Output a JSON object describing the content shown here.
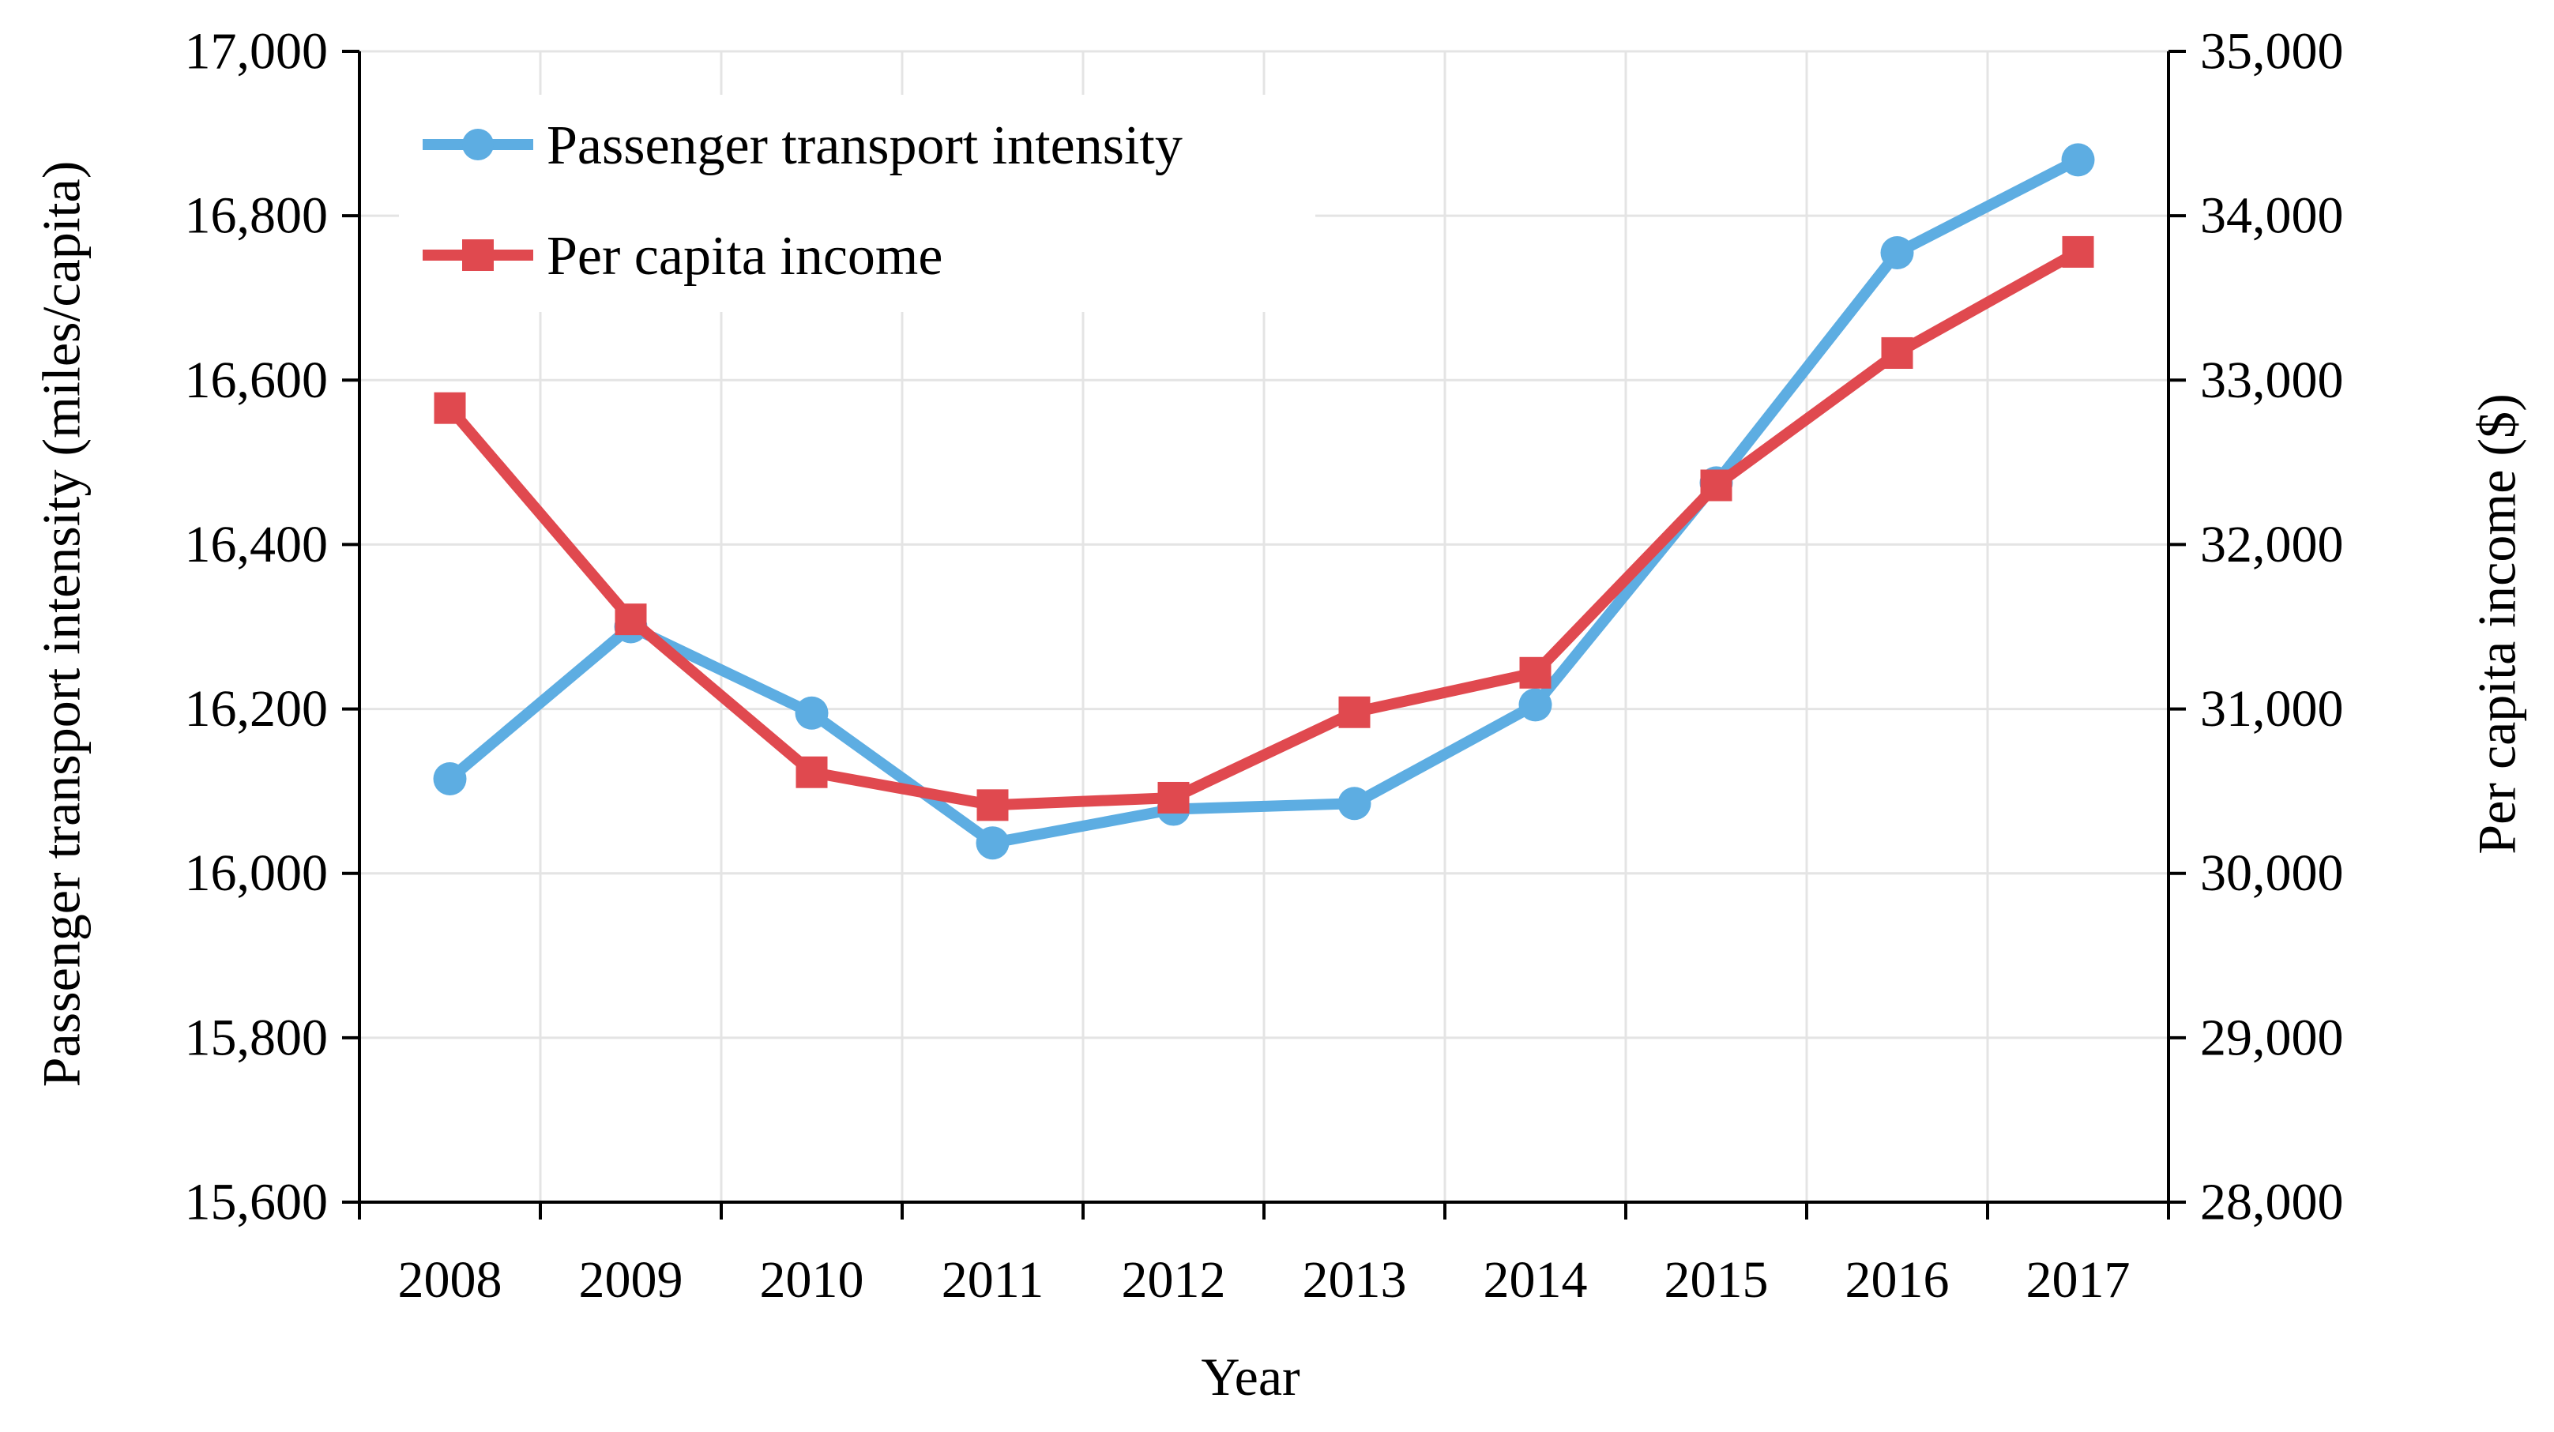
{
  "chart_data": {
    "type": "line",
    "title": "",
    "xlabel": "Year",
    "ylabel_left": "Passenger transport intensity (miles/capita)",
    "ylabel_right": "Per capita income ($)",
    "categories": [
      "2008",
      "2009",
      "2010",
      "2011",
      "2012",
      "2013",
      "2014",
      "2015",
      "2016",
      "2017"
    ],
    "y_left": {
      "min": 15600,
      "max": 17000,
      "step": 200,
      "tick_labels": [
        "15,600",
        "15,800",
        "16,000",
        "16,200",
        "16,400",
        "16,600",
        "16,800",
        "17,000"
      ]
    },
    "y_right": {
      "min": 28000,
      "max": 35000,
      "step": 1000,
      "tick_labels": [
        "28,000",
        "29,000",
        "30,000",
        "31,000",
        "32,000",
        "33,000",
        "34,000",
        "35,000"
      ]
    },
    "grid": true,
    "legend_position": "top-left",
    "series": [
      {
        "name": "Passenger transport intensity",
        "axis": "left",
        "color": "#5DADE2",
        "marker": "circle",
        "values": [
          16115,
          16300,
          16195,
          16037,
          16078,
          16085,
          16205,
          16475,
          16755,
          16868
        ]
      },
      {
        "name": "Per capita income",
        "axis": "right",
        "color": "#E0494F",
        "marker": "square",
        "values": [
          32830,
          31545,
          30615,
          30415,
          30460,
          30980,
          31220,
          32360,
          33165,
          33780
        ]
      }
    ]
  }
}
